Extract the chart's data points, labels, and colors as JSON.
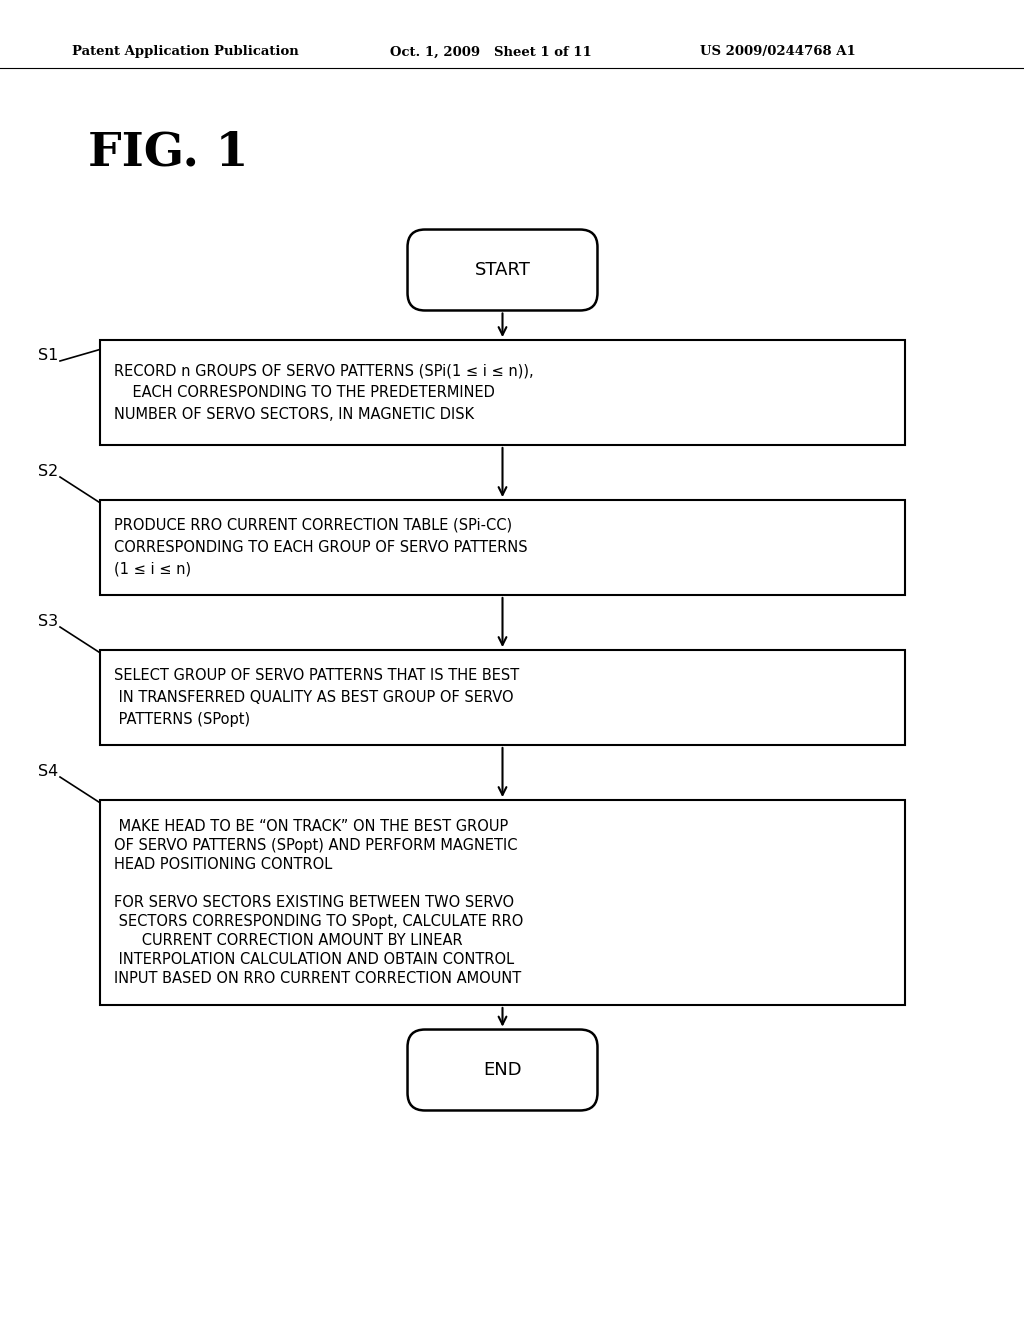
{
  "header_left": "Patent Application Publication",
  "header_mid": "Oct. 1, 2009   Sheet 1 of 11",
  "header_right": "US 2009/0244768 A1",
  "fig_label": "FIG. 1",
  "background_color": "#ffffff",
  "start_text": "START",
  "end_text": "END",
  "s1_label": "S1",
  "s2_label": "S2",
  "s3_label": "S3",
  "s4_label": "S4",
  "s1_text_line1": "RECORD n GROUPS OF SERVO PATTERNS (SPi(1 ≤ i ≤ n)),",
  "s1_text_line2": "    EACH CORRESPONDING TO THE PREDETERMINED",
  "s1_text_line3": "NUMBER OF SERVO SECTORS, IN MAGNETIC DISK",
  "s2_text_line1": "PRODUCE RRO CURRENT CORRECTION TABLE (SPi-CC)",
  "s2_text_line2": "CORRESPONDING TO EACH GROUP OF SERVO PATTERNS",
  "s2_text_line3": "(1 ≤ i ≤ n)",
  "s3_text_line1": "SELECT GROUP OF SERVO PATTERNS THAT IS THE BEST",
  "s3_text_line2": " IN TRANSFERRED QUALITY AS BEST GROUP OF SERVO",
  "s3_text_line3": " PATTERNS (SPopt)",
  "s4_text_line1": " MAKE HEAD TO BE “ON TRACK” ON THE BEST GROUP",
  "s4_text_line2": "OF SERVO PATTERNS (SPopt) AND PERFORM MAGNETIC",
  "s4_text_line3": "HEAD POSITIONING CONTROL",
  "s4_text_line4": "",
  "s4_text_line5": "FOR SERVO SECTORS EXISTING BETWEEN TWO SERVO",
  "s4_text_line6": " SECTORS CORRESPONDING TO SPopt, CALCULATE RRO",
  "s4_text_line7": "      CURRENT CORRECTION AMOUNT BY LINEAR",
  "s4_text_line8": " INTERPOLATION CALCULATION AND OBTAIN CONTROL",
  "s4_text_line9": "INPUT BASED ON RRO CURRENT CORRECTION AMOUNT"
}
